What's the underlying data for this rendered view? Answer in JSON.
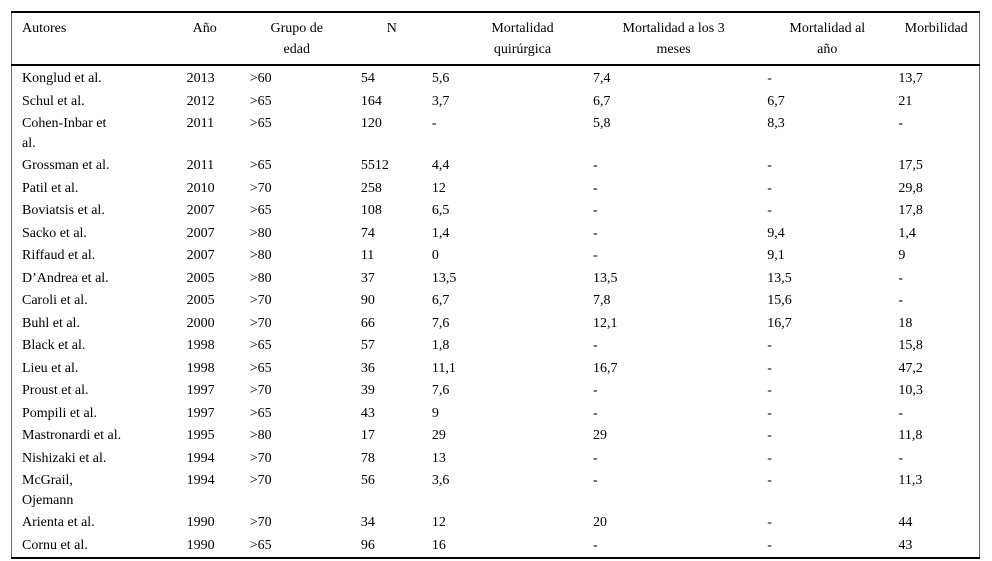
{
  "table": {
    "columns": [
      {
        "label": "Autores"
      },
      {
        "label": "Año"
      },
      {
        "label": "Grupo de\nedad"
      },
      {
        "label": "N"
      },
      {
        "label": "Mortalidad\nquirúrgica"
      },
      {
        "label": "Mortalidad a los 3\nmeses"
      },
      {
        "label": "Mortalidad al\naño"
      },
      {
        "label": "Morbilidad"
      }
    ],
    "rows": [
      [
        "Konglud et al.",
        "2013",
        ">60",
        "54",
        "5,6",
        "7,4",
        "-",
        "13,7"
      ],
      [
        "Schul et al.",
        "2012",
        ">65",
        "164",
        "3,7",
        "6,7",
        "6,7",
        "21"
      ],
      [
        "Cohen-Inbar et\nal.",
        "2011",
        ">65",
        "120",
        "-",
        "5,8",
        "8,3",
        "-"
      ],
      [
        "Grossman et al.",
        "2011",
        ">65",
        "5512",
        "4,4",
        "-",
        "-",
        "17,5"
      ],
      [
        "Patil et al.",
        "2010",
        ">70",
        "258",
        "12",
        "-",
        "-",
        "29,8"
      ],
      [
        "Boviatsis et al.",
        "2007",
        ">65",
        "108",
        "6,5",
        "-",
        "-",
        "17,8"
      ],
      [
        "Sacko et al.",
        "2007",
        ">80",
        "74",
        "1,4",
        "-",
        "9,4",
        "1,4"
      ],
      [
        "Riffaud et al.",
        "2007",
        ">80",
        "11",
        "0",
        "-",
        "9,1",
        "9"
      ],
      [
        "D’Andrea et al.",
        "2005",
        ">80",
        "37",
        "13,5",
        "13,5",
        "13,5",
        "-"
      ],
      [
        "Caroli et al.",
        "2005",
        ">70",
        "90",
        "6,7",
        "7,8",
        "15,6",
        "-"
      ],
      [
        "Buhl et al.",
        "2000",
        ">70",
        "66",
        "7,6",
        "12,1",
        "16,7",
        "18"
      ],
      [
        "Black et al.",
        "1998",
        ">65",
        "57",
        "1,8",
        "-",
        "-",
        "15,8"
      ],
      [
        "Lieu et al.",
        "1998",
        ">65",
        "36",
        "11,1",
        "16,7",
        "-",
        "47,2"
      ],
      [
        "Proust et al.",
        "1997",
        ">70",
        "39",
        "7,6",
        "-",
        "-",
        "10,3"
      ],
      [
        "Pompili et al.",
        "1997",
        ">65",
        "43",
        "9",
        "-",
        "-",
        "-"
      ],
      [
        "Mastronardi et al.",
        "1995",
        ">80",
        "17",
        "29",
        "29",
        "-",
        "11,8"
      ],
      [
        "Nishizaki et al.",
        "1994",
        ">70",
        "78",
        "13",
        "-",
        "-",
        "-"
      ],
      [
        "McGrail,\nOjemann",
        "1994",
        ">70",
        "56",
        "3,6",
        "-",
        "-",
        "11,3"
      ],
      [
        "Arienta et al.",
        "1990",
        ">70",
        "34",
        "12",
        "20",
        "-",
        "44"
      ],
      [
        "Cornu et al.",
        "1990",
        ">65",
        "96",
        "16",
        "-",
        "-",
        "43"
      ]
    ]
  },
  "chart_data": {
    "type": "table",
    "title": "",
    "columns": [
      "Autores",
      "Año",
      "Grupo de edad",
      "N",
      "Mortalidad quirúrgica",
      "Mortalidad a los 3 meses",
      "Mortalidad al año",
      "Morbilidad"
    ],
    "rows": [
      [
        "Konglud et al.",
        "2013",
        ">60",
        "54",
        "5,6",
        "7,4",
        "-",
        "13,7"
      ],
      [
        "Schul et al.",
        "2012",
        ">65",
        "164",
        "3,7",
        "6,7",
        "6,7",
        "21"
      ],
      [
        "Cohen-Inbar et al.",
        "2011",
        ">65",
        "120",
        "-",
        "5,8",
        "8,3",
        "-"
      ],
      [
        "Grossman et al.",
        "2011",
        ">65",
        "5512",
        "4,4",
        "-",
        "-",
        "17,5"
      ],
      [
        "Patil et al.",
        "2010",
        ">70",
        "258",
        "12",
        "-",
        "-",
        "29,8"
      ],
      [
        "Boviatsis et al.",
        "2007",
        ">65",
        "108",
        "6,5",
        "-",
        "-",
        "17,8"
      ],
      [
        "Sacko et al.",
        "2007",
        ">80",
        "74",
        "1,4",
        "-",
        "9,4",
        "1,4"
      ],
      [
        "Riffaud et al.",
        "2007",
        ">80",
        "11",
        "0",
        "-",
        "9,1",
        "9"
      ],
      [
        "D’Andrea et al.",
        "2005",
        ">80",
        "37",
        "13,5",
        "13,5",
        "13,5",
        "-"
      ],
      [
        "Caroli et al.",
        "2005",
        ">70",
        "90",
        "6,7",
        "7,8",
        "15,6",
        "-"
      ],
      [
        "Buhl et al.",
        "2000",
        ">70",
        "66",
        "7,6",
        "12,1",
        "16,7",
        "18"
      ],
      [
        "Black et al.",
        "1998",
        ">65",
        "57",
        "1,8",
        "-",
        "-",
        "15,8"
      ],
      [
        "Lieu et al.",
        "1998",
        ">65",
        "36",
        "11,1",
        "16,7",
        "-",
        "47,2"
      ],
      [
        "Proust et al.",
        "1997",
        ">70",
        "39",
        "7,6",
        "-",
        "-",
        "10,3"
      ],
      [
        "Pompili et al.",
        "1997",
        ">65",
        "43",
        "9",
        "-",
        "-",
        "-"
      ],
      [
        "Mastronardi et al.",
        "1995",
        ">80",
        "17",
        "29",
        "29",
        "-",
        "11,8"
      ],
      [
        "Nishizaki et al.",
        "1994",
        ">70",
        "78",
        "13",
        "-",
        "-",
        "-"
      ],
      [
        "McGrail, Ojemann",
        "1994",
        ">70",
        "56",
        "3,6",
        "-",
        "-",
        "11,3"
      ],
      [
        "Arienta et al.",
        "1990",
        ">70",
        "34",
        "12",
        "20",
        "-",
        "44"
      ],
      [
        "Cornu et al.",
        "1990",
        ">65",
        "96",
        "16",
        "-",
        "-",
        "43"
      ]
    ]
  }
}
